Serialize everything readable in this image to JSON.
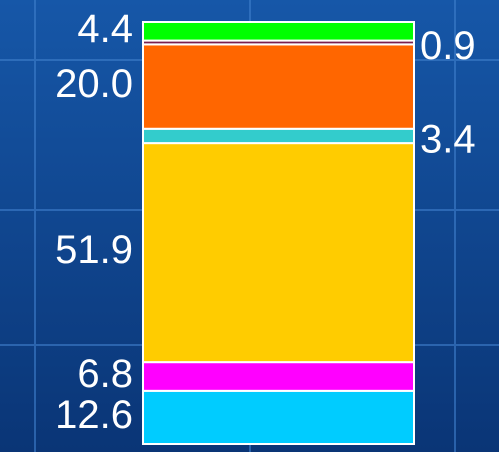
{
  "chart_data": {
    "type": "stacked-bar",
    "values": [
      12.6,
      6.8,
      51.9,
      3.4,
      20.0,
      0.9,
      4.4
    ],
    "value_labels": [
      "12.6",
      "6.8",
      "51.9",
      "3.4",
      "20.0",
      "0.9",
      "4.4"
    ],
    "colors": [
      "#00ccff",
      "#ff00ff",
      "#ffcc00",
      "#33cccc",
      "#ff6600",
      "#7a1f4f",
      "#00ff00"
    ]
  }
}
